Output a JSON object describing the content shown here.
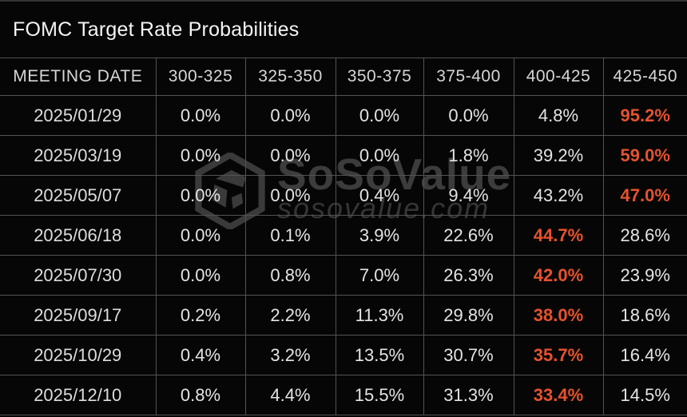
{
  "title": "FOMC Target Rate Probabilities",
  "watermark": {
    "brand": "SoSoValue",
    "domain": "sosovalue.com"
  },
  "colors": {
    "background": "#060606",
    "top_strip": "#333333",
    "grid_border": "#535353",
    "title_text": "#f5f5f5",
    "header_text": "#d6d6d6",
    "cell_text": "#e4e4e4",
    "highlight_orange": "#e6522e",
    "watermark_gray": "#3c3c3c"
  },
  "chart_data": {
    "type": "table",
    "title": "FOMC Target Rate Probabilities",
    "unit": "%",
    "columns": [
      "MEETING DATE",
      "300-325",
      "325-350",
      "350-375",
      "375-400",
      "400-425",
      "425-450"
    ],
    "highlight_rule": "maximum probability in each row rendered in bold orange",
    "rows": [
      {
        "date": "2025/01/29",
        "values": [
          0.0,
          0.0,
          0.0,
          0.0,
          4.8,
          95.2
        ],
        "max_index": 5
      },
      {
        "date": "2025/03/19",
        "values": [
          0.0,
          0.0,
          0.0,
          1.8,
          39.2,
          59.0
        ],
        "max_index": 5
      },
      {
        "date": "2025/05/07",
        "values": [
          0.0,
          0.0,
          0.4,
          9.4,
          43.2,
          47.0
        ],
        "max_index": 5
      },
      {
        "date": "2025/06/18",
        "values": [
          0.0,
          0.1,
          3.9,
          22.6,
          44.7,
          28.6
        ],
        "max_index": 4
      },
      {
        "date": "2025/07/30",
        "values": [
          0.0,
          0.8,
          7.0,
          26.3,
          42.0,
          23.9
        ],
        "max_index": 4
      },
      {
        "date": "2025/09/17",
        "values": [
          0.2,
          2.2,
          11.3,
          29.8,
          38.0,
          18.6
        ],
        "max_index": 4
      },
      {
        "date": "2025/10/29",
        "values": [
          0.4,
          3.2,
          13.5,
          30.7,
          35.7,
          16.4
        ],
        "max_index": 4
      },
      {
        "date": "2025/12/10",
        "values": [
          0.8,
          4.4,
          15.5,
          31.3,
          33.4,
          14.5
        ],
        "max_index": 4
      }
    ]
  }
}
